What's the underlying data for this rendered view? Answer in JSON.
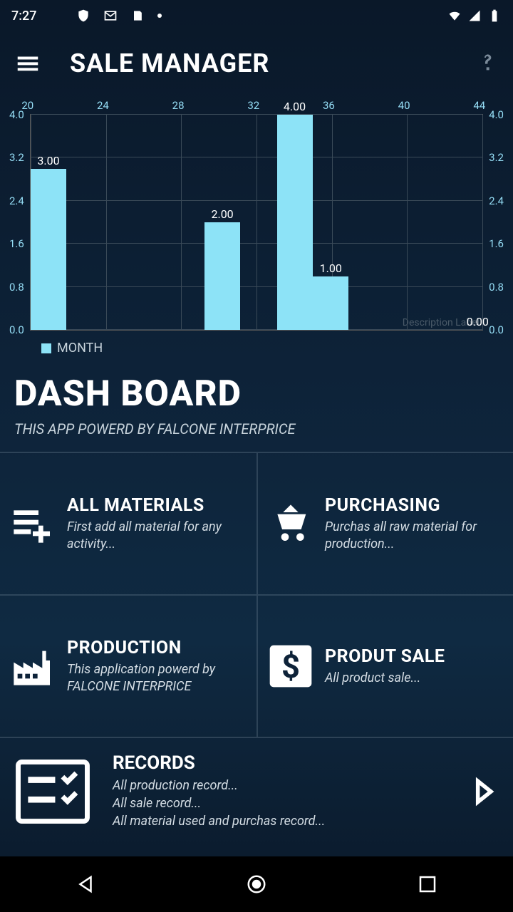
{
  "status": {
    "time": "7:27"
  },
  "app_bar": {
    "title": "SALE MANAGER"
  },
  "chart": {
    "type": "bar",
    "x_labels": [
      "20",
      "24",
      "28",
      "32",
      "36",
      "40",
      "44"
    ],
    "y_ticks": [
      0.0,
      0.8,
      1.6,
      2.4,
      3.2,
      4.0
    ],
    "y_tick_labels": [
      "0.0",
      "0.8",
      "1.6",
      "2.4",
      "3.2",
      "4.0"
    ],
    "ylim": [
      0,
      4.0
    ],
    "bars": [
      {
        "x_frac": 0.0,
        "value": 3.0,
        "label": "3.00"
      },
      {
        "x_frac": 0.385,
        "value": 2.0,
        "label": "2.00"
      },
      {
        "x_frac": 0.545,
        "value": 4.0,
        "label": "4.00"
      },
      {
        "x_frac": 0.625,
        "value": 1.0,
        "label": "1.00"
      },
      {
        "x_frac": 0.95,
        "value": 0.0,
        "label": "0.00"
      }
    ],
    "bar_color": "#8de3f7",
    "grid_color": "#3a4a58",
    "axis_text_color": "#95ddf5",
    "background": "transparent",
    "description_label": "Description Label",
    "legend_label": "MONTH"
  },
  "dashboard": {
    "title": "DASH BOARD",
    "subtitle": "THIS APP POWERD BY FALCONE INTERPRICE"
  },
  "tiles": {
    "materials": {
      "title": "ALL MATERIALS",
      "desc": "First add all material for any activity..."
    },
    "purchasing": {
      "title": "PURCHASING",
      "desc": "Purchas all raw material for production..."
    },
    "production": {
      "title": "PRODUCTION",
      "desc": "This application powerd by FALCONE INTERPRICE"
    },
    "sale": {
      "title": "PRODUT SALE",
      "desc": "All product sale..."
    }
  },
  "records": {
    "title": "RECORDS",
    "line1": "All production record...",
    "line2": "All sale record...",
    "line3": "All material used and purchas record..."
  }
}
